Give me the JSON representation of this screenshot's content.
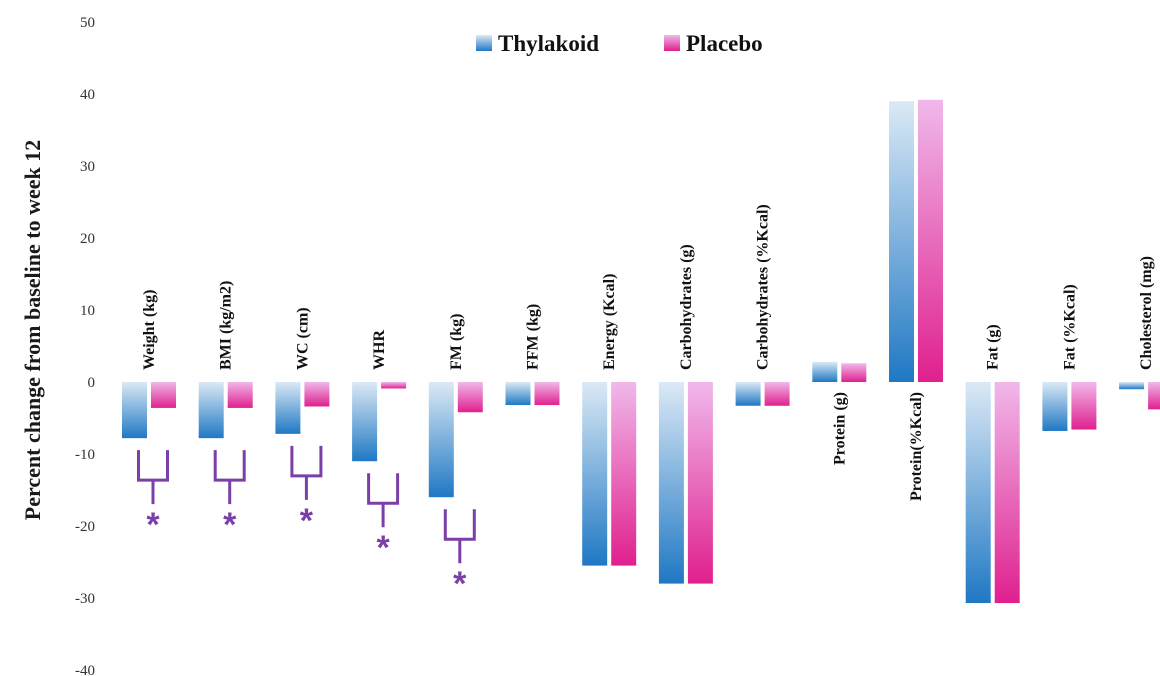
{
  "chart_data": {
    "type": "bar",
    "title": "",
    "xlabel": "",
    "ylabel": "Percent change from baseline to week 12",
    "ylim": [
      -40,
      50
    ],
    "yticks": [
      50,
      40,
      30,
      20,
      10,
      0,
      -10,
      -20,
      -30,
      -40
    ],
    "grid": false,
    "legend_position": "top-center",
    "categories": [
      "Weight (kg)",
      "BMI (kg/m2)",
      "WC (cm)",
      "WHR",
      "FM (kg)",
      "FFM (kg)",
      "Energy (Kcal)",
      "Carbohydrates (g)",
      "Carbohydrates  (%Kcal)",
      "Protein  (g)",
      "Protein(%Kcal)",
      "Fat (g)",
      "Fat (%Kcal)",
      "Cholesterol (mg)"
    ],
    "label_side": [
      "above",
      "above",
      "above",
      "above",
      "above",
      "above",
      "above",
      "above",
      "above",
      "below",
      "below",
      "above",
      "above",
      "above"
    ],
    "series": [
      {
        "name": "Thylakoid",
        "color": "#2b7fc8",
        "values": [
          -7.8,
          -7.8,
          -7.2,
          -11,
          -16,
          -3.2,
          -25.5,
          -28,
          -3.3,
          2.8,
          39,
          -30.7,
          -6.8,
          -1
        ]
      },
      {
        "name": "Placebo",
        "color": "#e0309a",
        "values": [
          -3.6,
          -3.6,
          -3.4,
          -0.9,
          -4.2,
          -3.2,
          -25.5,
          -28,
          -3.3,
          2.6,
          39.2,
          -30.7,
          -6.6,
          -3.8
        ]
      }
    ],
    "significance_marks": [
      {
        "category": "Weight (kg)",
        "symbol": "*"
      },
      {
        "category": "BMI (kg/m2)",
        "symbol": "*"
      },
      {
        "category": "WC (cm)",
        "symbol": "*"
      },
      {
        "category": "WHR",
        "symbol": "*"
      },
      {
        "category": "FM (kg)",
        "symbol": "*"
      }
    ]
  }
}
